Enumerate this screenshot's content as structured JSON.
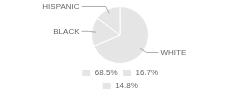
{
  "chart_data": {
    "type": "pie",
    "categories": [
      "WHITE",
      "BLACK",
      "HISPANIC"
    ],
    "values": [
      68.5,
      16.7,
      14.8
    ],
    "value_labels": [
      "68.5%",
      "16.7%",
      "14.8%"
    ],
    "legend": "bottom"
  }
}
